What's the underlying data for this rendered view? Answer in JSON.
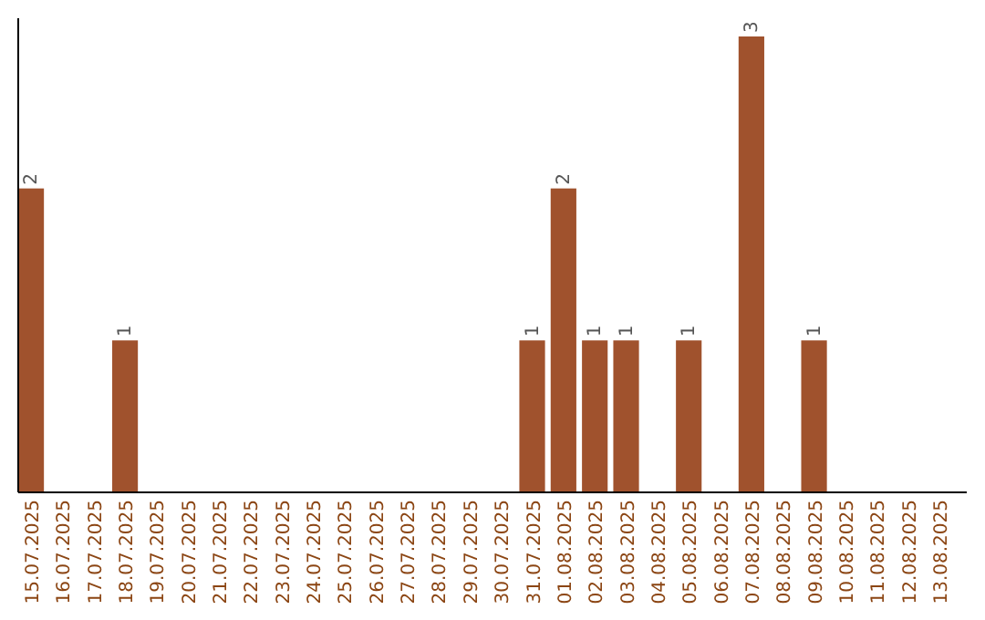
{
  "chart_data": {
    "type": "bar",
    "relative": false,
    "categories": [
      "15.07.2025",
      "16.07.2025",
      "17.07.2025",
      "18.07.2025",
      "19.07.2025",
      "20.07.2025",
      "21.07.2025",
      "22.07.2025",
      "23.07.2025",
      "24.07.2025",
      "25.07.2025",
      "26.07.2025",
      "27.07.2025",
      "28.07.2025",
      "29.07.2025",
      "30.07.2025",
      "31.07.2025",
      "01.08.2025",
      "02.08.2025",
      "03.08.2025",
      "04.08.2025",
      "05.08.2025",
      "06.08.2025",
      "07.08.2025",
      "08.08.2025",
      "09.08.2025",
      "10.08.2025",
      "11.08.2025",
      "12.08.2025",
      "13.08.2025"
    ],
    "values": [
      2,
      0,
      0,
      1,
      0,
      0,
      0,
      0,
      0,
      0,
      0,
      0,
      0,
      0,
      0,
      0,
      1,
      2,
      1,
      1,
      0,
      1,
      0,
      3,
      0,
      1,
      0,
      0,
      0,
      0
    ],
    "value_labels": [
      "2",
      null,
      null,
      "1",
      null,
      null,
      null,
      null,
      null,
      null,
      null,
      null,
      null,
      null,
      null,
      null,
      "1",
      "2",
      "1",
      "1",
      null,
      "1",
      null,
      "3",
      null,
      "1",
      null,
      null,
      null,
      null
    ],
    "color": "#a0522d"
  }
}
